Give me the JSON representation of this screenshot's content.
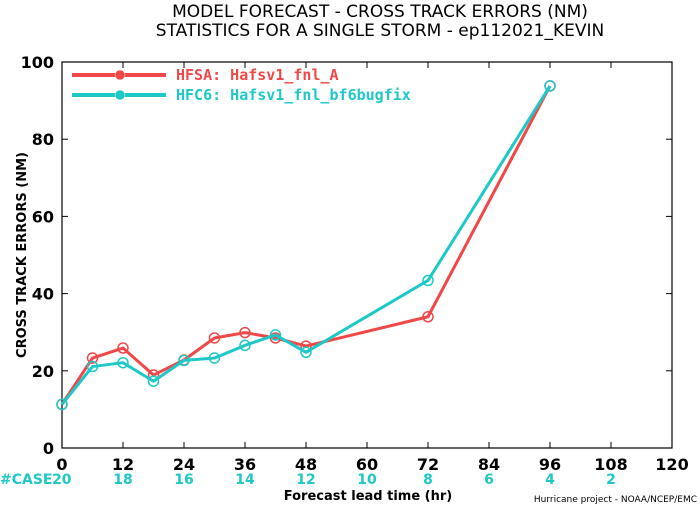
{
  "chart_data": {
    "type": "line",
    "title": "MODEL FORECAST - CROSS TRACK ERRORS (NM)",
    "subtitle": "STATISTICS FOR A SINGLE STORM - ep112021_KEVIN",
    "xlabel": "Forecast lead time (hr)",
    "ylabel": "CROSS TRACK ERRORS (NM)",
    "xlim": [
      0,
      120
    ],
    "ylim": [
      0,
      100
    ],
    "x_ticks": [
      0,
      12,
      24,
      36,
      48,
      60,
      72,
      84,
      96,
      108,
      120
    ],
    "y_ticks": [
      0,
      20,
      40,
      60,
      80,
      100
    ],
    "legend_position": "top-left",
    "series": [
      {
        "name": "HFSA: Hafsv1_fnl_A",
        "color": "#f04848",
        "x": [
          0,
          6,
          12,
          18,
          24,
          30,
          36,
          42,
          48,
          72,
          96
        ],
        "y": [
          11.3,
          23.3,
          25.9,
          18.9,
          22.8,
          28.5,
          29.9,
          28.5,
          26.4,
          34.0,
          93.8
        ]
      },
      {
        "name": "HFC6: Hafsv1_fnl_bf6bugfix",
        "color": "#1ec8c8",
        "x": [
          0,
          6,
          12,
          18,
          24,
          30,
          36,
          42,
          48,
          72,
          96
        ],
        "y": [
          11.3,
          21.1,
          22.1,
          17.3,
          22.7,
          23.3,
          26.6,
          29.3,
          24.8,
          43.4,
          93.8
        ]
      }
    ],
    "case_label": "#CASE",
    "case_counts": [
      {
        "x": 0,
        "n": "20"
      },
      {
        "x": 12,
        "n": "18"
      },
      {
        "x": 24,
        "n": "16"
      },
      {
        "x": 36,
        "n": "14"
      },
      {
        "x": 48,
        "n": "12"
      },
      {
        "x": 60,
        "n": "10"
      },
      {
        "x": 72,
        "n": "8"
      },
      {
        "x": 84,
        "n": "6"
      },
      {
        "x": 96,
        "n": "4"
      },
      {
        "x": 108,
        "n": "2"
      }
    ],
    "credit": "Hurricane project - NOAA/NCEP/EMC"
  }
}
